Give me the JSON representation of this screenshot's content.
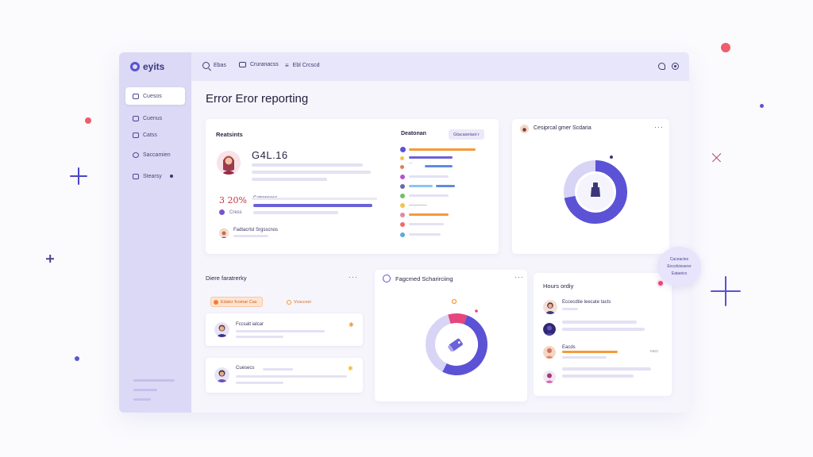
{
  "app": {
    "logo_text": "eyits",
    "page_title": "Error Eror reporting"
  },
  "sidebar": {
    "items": [
      {
        "label": "Cuesos",
        "active": true
      },
      {
        "label": "Cuenus"
      },
      {
        "label": "Catss"
      },
      {
        "label": "Saccamien"
      },
      {
        "label": "Stearsy"
      }
    ]
  },
  "topbar": {
    "items": [
      {
        "label": "Ebas",
        "icon": "search-icon"
      },
      {
        "label": "Cruranacss",
        "icon": "grid-icon"
      },
      {
        "label": "Ebl Crcscd",
        "icon": "menu-icon"
      }
    ],
    "right_icons": [
      "bell-icon",
      "user-icon"
    ]
  },
  "main_card": {
    "left_title": "Reatsints",
    "value": "G4L.16",
    "stat_value": "3 20%",
    "stat_label": "Catrencess",
    "secondary_label": "Cress",
    "footer_label": "Fadtacrtsl Srgsscnos",
    "right_title": "Deatonan",
    "right_chip": "Gtacaselaoi·r"
  },
  "donut_card_top": {
    "title": "Cesiprcal gmer Scdaria",
    "menu": "···",
    "slices": [
      {
        "label": "primary",
        "value": 72,
        "color": "#5b52d6"
      },
      {
        "label": "secondary",
        "value": 28,
        "color": "#d8d4f5"
      }
    ]
  },
  "bottom_left_card": {
    "title": "Diere faratrerky",
    "menu": "···",
    "chip_orange": "Edatcr fcomar Cas",
    "chip_tag": "Vcsccvoi",
    "rows": [
      {
        "title": "Fccsalt ialcar"
      },
      {
        "title": "Cuesecs"
      }
    ]
  },
  "donut_card_bottom": {
    "title": "Fagcmed Scharirciing",
    "menu": "···",
    "slices": [
      {
        "label": "primary",
        "value": 52,
        "color": "#5b52d6"
      },
      {
        "label": "light",
        "value": 38,
        "color": "#d8d4f5"
      },
      {
        "label": "accent",
        "value": 10,
        "color": "#e6457e"
      }
    ]
  },
  "right_card": {
    "title": "Hours ordiy",
    "rows": [
      {
        "title": "Eccecdtie leecate tacts"
      },
      {
        "title": ""
      },
      {
        "title": "Eacds",
        "value": "eacc"
      },
      {
        "title": ""
      }
    ]
  },
  "floating_badge": {
    "line1": "Caceacies",
    "line2": "Encolcieserer",
    "line3": "Eataeics"
  },
  "colors": {
    "accent": "#5b52d6",
    "orange": "#f59a3a",
    "pink": "#e6457e",
    "sidebar": "#dcd9f6"
  }
}
